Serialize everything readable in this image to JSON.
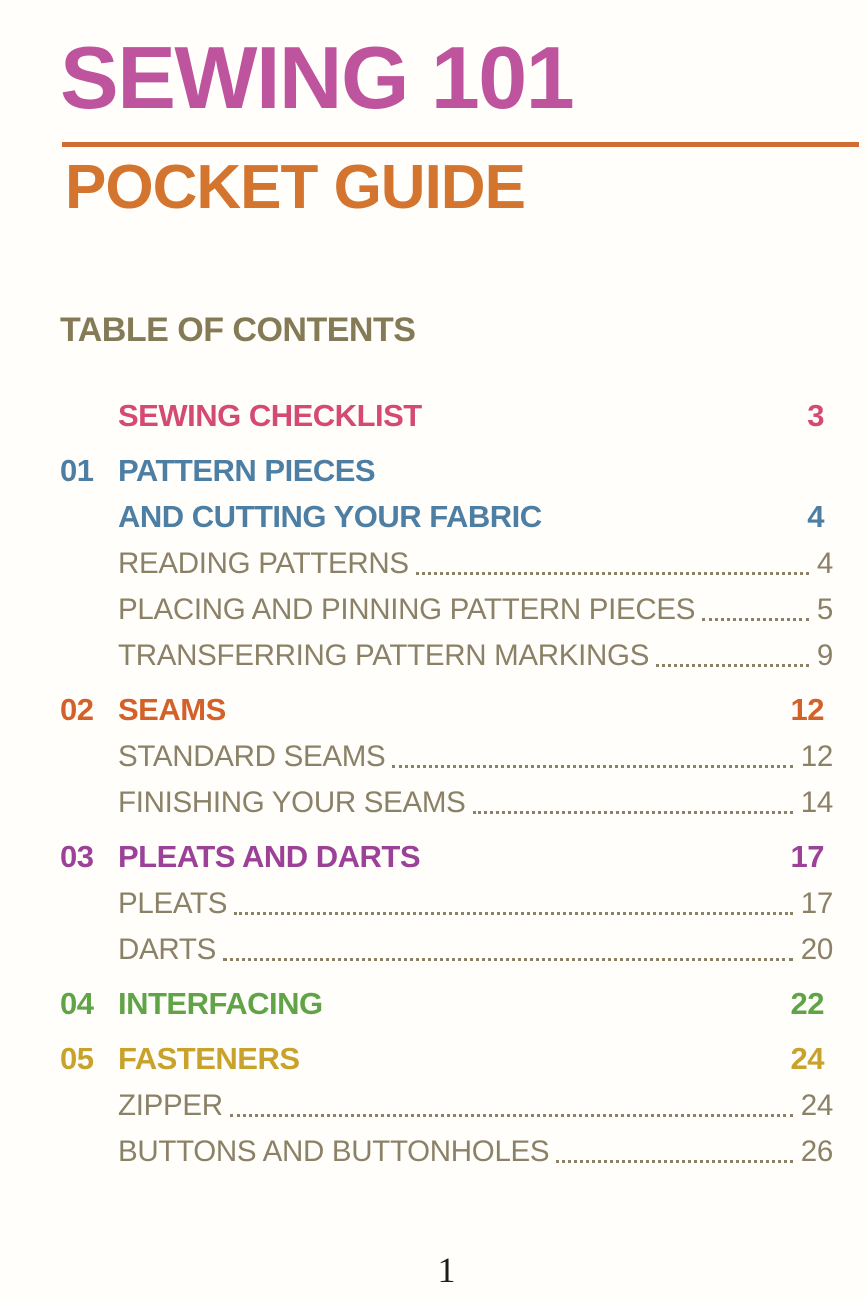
{
  "header": {
    "title": "SEWING 101",
    "subtitle": "POCKET GUIDE"
  },
  "toc": {
    "heading": "TABLE OF CONTENTS",
    "rows": [
      {
        "num": "",
        "title": "SEWING CHECKLIST",
        "page": "3",
        "kind": "section"
      },
      {
        "num": "01",
        "title": "PATTERN PIECES",
        "page": "",
        "kind": "section"
      },
      {
        "num": "",
        "title": "AND CUTTING YOUR FABRIC",
        "page": "4",
        "kind": "section"
      },
      {
        "num": "",
        "title": "READING PATTERNS",
        "page": "4",
        "kind": "sub"
      },
      {
        "num": "",
        "title": "PLACING AND PINNING PATTERN PIECES",
        "page": "5",
        "kind": "sub"
      },
      {
        "num": "",
        "title": "TRANSFERRING PATTERN MARKINGS",
        "page": "9",
        "kind": "sub"
      },
      {
        "num": "02",
        "title": "SEAMS",
        "page": "12",
        "kind": "section"
      },
      {
        "num": "",
        "title": "STANDARD SEAMS",
        "page": "12",
        "kind": "sub"
      },
      {
        "num": "",
        "title": "FINISHING YOUR SEAMS",
        "page": "14",
        "kind": "sub"
      },
      {
        "num": "03",
        "title": "PLEATS AND DARTS",
        "page": "17",
        "kind": "section"
      },
      {
        "num": "",
        "title": "PLEATS",
        "page": "17",
        "kind": "sub"
      },
      {
        "num": "",
        "title": "DARTS",
        "page": "20",
        "kind": "sub"
      },
      {
        "num": "04",
        "title": "INTERFACING",
        "page": "22",
        "kind": "section"
      },
      {
        "num": "05",
        "title": "FASTENERS",
        "page": "24",
        "kind": "section"
      },
      {
        "num": "",
        "title": "ZIPPER",
        "page": "24",
        "kind": "sub"
      },
      {
        "num": "",
        "title": "BUTTONS AND BUTTONHOLES",
        "page": "26",
        "kind": "sub"
      }
    ]
  },
  "footer": {
    "page_number": "1"
  },
  "colors": {
    "title": "#bf549e",
    "subtitle": "#d3752f",
    "rule": "#d06c34",
    "toc_heading": "#847b56",
    "checklist": "#d44a72",
    "section01": "#4d7ea4",
    "section02": "#d2622a",
    "section03": "#9c4198",
    "section04": "#60a447",
    "section05": "#c9a22b",
    "subitem": "#8b8167",
    "page_number": "#1d1d1b"
  }
}
